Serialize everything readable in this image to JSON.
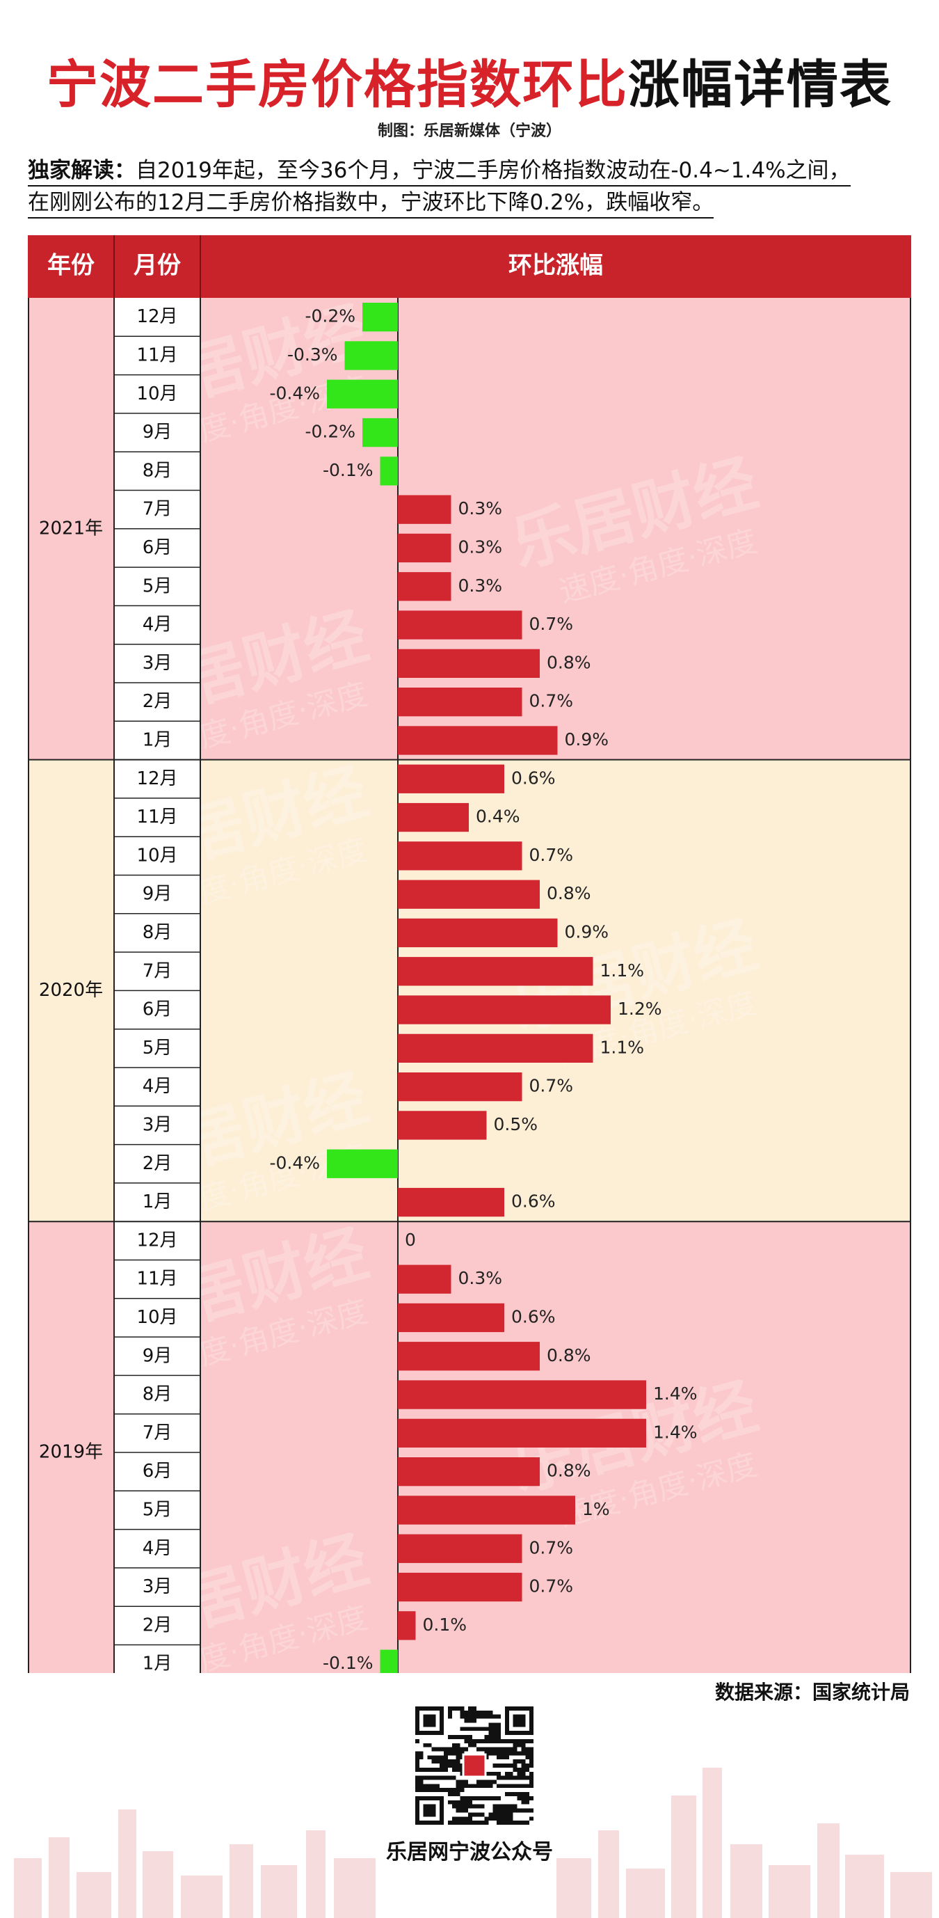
{
  "title": {
    "red_part": "宁波二手房价格指数环比",
    "black_part": "涨幅详情表"
  },
  "subtitle": "制图：乐居新媒体（宁波）",
  "intro": {
    "label": "独家解读：",
    "line1": "自2019年起，至今36个月，宁波二手房价格指数波动在-0.4~1.4%之间，",
    "line2": "在刚刚公布的12月二手房价格指数中，宁波环比下降0.2%，跌幅收窄。"
  },
  "table": {
    "col_year": "年份",
    "col_month": "月份",
    "col_change": "环比涨幅"
  },
  "watermark": {
    "brand": "乐居财经",
    "slogan": "速度·角度·深度"
  },
  "colors": {
    "title_red": "#d8222a",
    "header_red": "#c8232b",
    "bar_red": "#d22630",
    "bar_green": "#33e61a",
    "band_pink": "#fbc9cc",
    "band_cream": "#fdeed6"
  },
  "chart_data": {
    "type": "bar",
    "orientation": "horizontal",
    "title": "宁波二手房价格指数环比涨幅详情表",
    "xlabel": "环比涨幅",
    "ylabel": "月份",
    "xlim": [
      -0.4,
      1.4
    ],
    "groups": [
      {
        "year": "2021年",
        "months": [
          "12月",
          "11月",
          "10月",
          "9月",
          "8月",
          "7月",
          "6月",
          "5月",
          "4月",
          "3月",
          "2月",
          "1月"
        ],
        "values": [
          -0.2,
          -0.3,
          -0.4,
          -0.2,
          -0.1,
          0.3,
          0.3,
          0.3,
          0.7,
          0.8,
          0.7,
          0.9
        ],
        "labels": [
          "-0.2%",
          "-0.3%",
          "-0.4%",
          "-0.2%",
          "-0.1%",
          "0.3%",
          "0.3%",
          "0.3%",
          "0.7%",
          "0.8%",
          "0.7%",
          "0.9%"
        ]
      },
      {
        "year": "2020年",
        "months": [
          "12月",
          "11月",
          "10月",
          "9月",
          "8月",
          "7月",
          "6月",
          "5月",
          "4月",
          "3月",
          "2月",
          "1月"
        ],
        "values": [
          0.6,
          0.4,
          0.7,
          0.8,
          0.9,
          1.1,
          1.2,
          1.1,
          0.7,
          0.5,
          -0.4,
          0.6
        ],
        "labels": [
          "0.6%",
          "0.4%",
          "0.7%",
          "0.8%",
          "0.9%",
          "1.1%",
          "1.2%",
          "1.1%",
          "0.7%",
          "0.5%",
          "-0.4%",
          "0.6%"
        ]
      },
      {
        "year": "2019年",
        "months": [
          "12月",
          "11月",
          "10月",
          "9月",
          "8月",
          "7月",
          "6月",
          "5月",
          "4月",
          "3月",
          "2月",
          "1月"
        ],
        "values": [
          0,
          0.3,
          0.6,
          0.8,
          1.4,
          1.4,
          0.8,
          1.0,
          0.7,
          0.7,
          0.1,
          -0.1
        ],
        "labels": [
          "0",
          "0.3%",
          "0.6%",
          "0.8%",
          "1.4%",
          "1.4%",
          "0.8%",
          "1%",
          "0.7%",
          "0.7%",
          "0.1%",
          "-0.1%"
        ]
      }
    ]
  },
  "source": "数据来源：国家统计局",
  "qr_label": "乐居网宁波公众号"
}
